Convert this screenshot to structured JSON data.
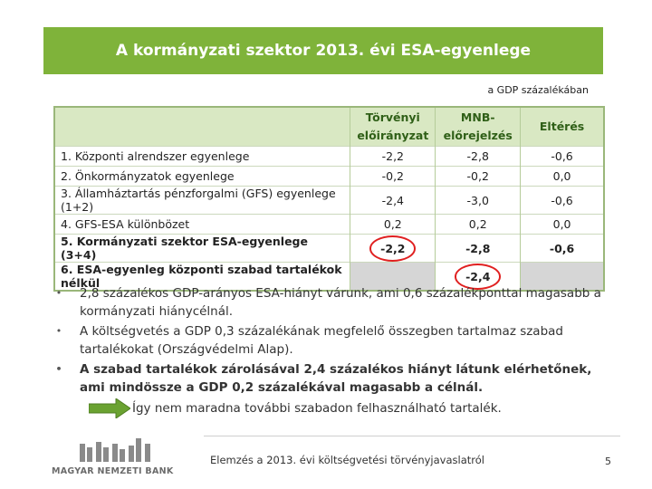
{
  "slide": {
    "title": "A kormányzati szektor 2013. évi ESA-egyenlege",
    "unit_note": "a GDP százalékában"
  },
  "table": {
    "headers": {
      "col1_line1": "Törvényi",
      "col1_line2": "előirányzat",
      "col2_line1": "MNB-",
      "col2_line2": "előrejelzés",
      "col3": "Eltérés"
    },
    "rows": [
      {
        "label": "1. Központi alrendszer egyenlege",
        "a": "-2,2",
        "b": "-2,8",
        "c": "-0,6"
      },
      {
        "label": "2. Önkormányzatok egyenlege",
        "a": "-0,2",
        "b": "-0,2",
        "c": "0,0"
      },
      {
        "label": "3. Államháztartás pénzforgalmi (GFS) egyenlege   (1+2)",
        "a": "-2,4",
        "b": "-3,0",
        "c": "-0,6"
      },
      {
        "label": "4. GFS-ESA különbözet",
        "a": "0,2",
        "b": "0,2",
        "c": "0,0"
      },
      {
        "label": "5. Kormányzati szektor ESA-egyenlege (3+4)",
        "a": "-2,2",
        "b": "-2,8",
        "c": "-0,6"
      },
      {
        "label": "6. ESA-egyenleg központi szabad tartalékok nélkül",
        "a": "",
        "b": "-2,4",
        "c": ""
      }
    ]
  },
  "bullets": [
    "2,8 százalékos GDP-arányos ESA-hiányt várunk, ami 0,6 százalékponttal magasabb a kormányzati hiánycélnál.",
    "A költségvetés a GDP 0,3 százalékának megfelelő összegben tartalmaz szabad tartalékokat (Országvédelmi Alap).",
    "A szabad tartalékok zárolásával 2,4 százalékos hiányt látunk elérhetőnek, ami mindössze a GDP 0,2 százalékával magasabb a célnál."
  ],
  "conclusion": "Így nem maradna további szabadon felhasználható tartalék.",
  "footer": {
    "logo_text": "MAGYAR NEMZETI BANK",
    "caption": "Elemzés a 2013. évi költségvetési törvényjavaslatról",
    "page_number": "5"
  },
  "colors": {
    "title_bg": "#7fb33a",
    "header_bg": "#d9e8c3",
    "circle": "#e02020",
    "arrow": "#6aa231"
  },
  "icons": [
    "right-arrow-icon",
    "mnb-logo-icon"
  ]
}
